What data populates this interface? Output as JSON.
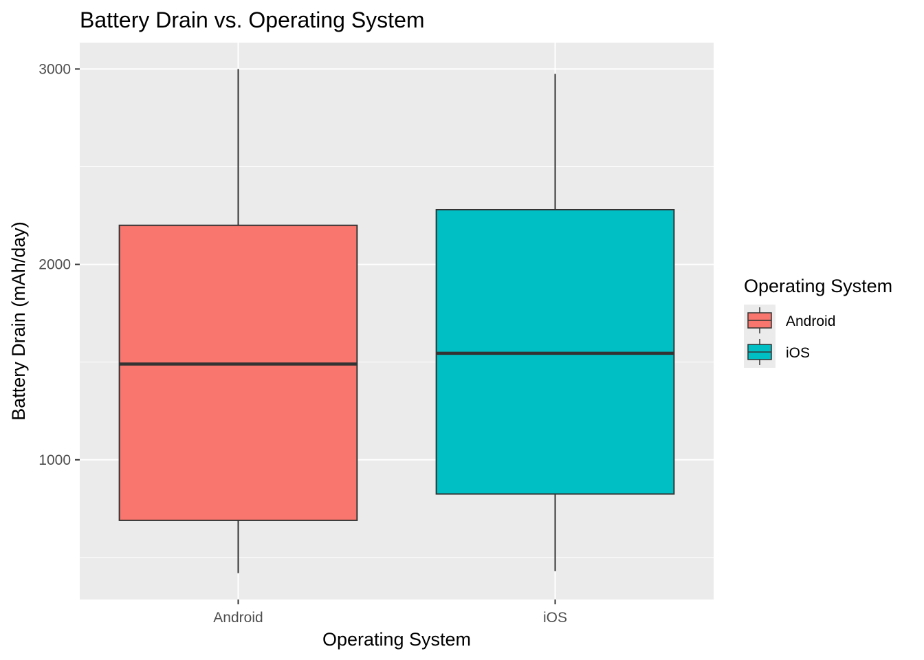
{
  "chart_data": {
    "type": "boxplot",
    "title": "Battery Drain vs. Operating System",
    "xlabel": "Operating System",
    "ylabel": "Battery Drain (mAh/day)",
    "ylim": [
      285,
      3135
    ],
    "yticks": [
      1000,
      2000,
      3000
    ],
    "y_minor_gridlines": [
      500,
      1500,
      2500
    ],
    "grid": true,
    "legend_position": "right",
    "legend_title": "Operating System",
    "categories": [
      "Android",
      "iOS"
    ],
    "series": [
      {
        "name": "Android",
        "color": "#F8766D",
        "whisker_low": 420,
        "q1": 690,
        "median": 1490,
        "q3": 2200,
        "whisker_high": 3000
      },
      {
        "name": "iOS",
        "color": "#00BFC4",
        "whisker_low": 430,
        "q1": 825,
        "median": 1545,
        "q3": 2280,
        "whisker_high": 2975
      }
    ],
    "colors": {
      "panel_background": "#EBEBEB",
      "grid_major": "#FFFFFF",
      "box_outline": "#333333",
      "tick": "#333333"
    }
  }
}
